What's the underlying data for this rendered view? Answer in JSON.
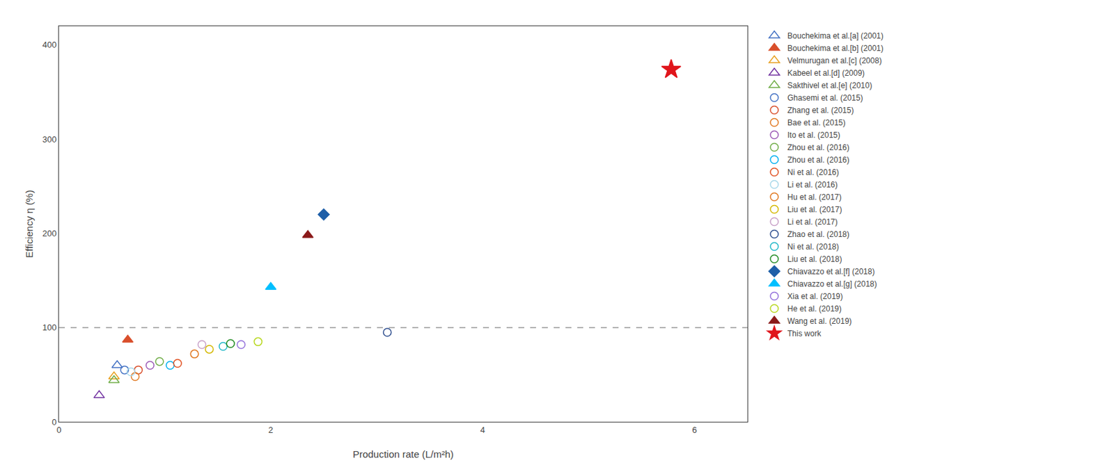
{
  "chart_data": {
    "type": "scatter",
    "x_label": "Production rate (L/m²h)",
    "y_label": "Efficiency η (%)",
    "xlim": [
      0,
      6.5
    ],
    "ylim": [
      0,
      420
    ],
    "xticks": [
      0,
      2,
      4,
      6
    ],
    "yticks": [
      0,
      100,
      200,
      300,
      400
    ],
    "grid": false,
    "legend": "right",
    "reference_lines": [
      {
        "y": 100,
        "line_style": "dashed",
        "color": "#999999"
      }
    ],
    "series": [
      {
        "name": "Bouchekima et al.[a] (2001)",
        "marker": "triangle-up-open",
        "color": "#4472C4",
        "x": [
          0.55
        ],
        "values": [
          60
        ]
      },
      {
        "name": "Bouchekima et al.[b] (2001)",
        "marker": "triangle-up",
        "color": "#D94F2B",
        "x": [
          0.65
        ],
        "values": [
          87
        ]
      },
      {
        "name": "Velmurugan et al.[c] (2008)",
        "marker": "triangle-up-open",
        "color": "#E8A020",
        "x": [
          0.52
        ],
        "values": [
          48
        ]
      },
      {
        "name": "Kabeel et al.[d] (2009)",
        "marker": "triangle-up-open",
        "color": "#7030A0",
        "x": [
          0.38
        ],
        "values": [
          28
        ]
      },
      {
        "name": "Sakthivel et al.[e] (2010)",
        "marker": "triangle-up-open",
        "color": "#70AD47",
        "x": [
          0.52
        ],
        "values": [
          44
        ]
      },
      {
        "name": "Ghasemi et al. (2015)",
        "marker": "circle-open",
        "color": "#4472C4",
        "x": [
          0.62
        ],
        "values": [
          55
        ]
      },
      {
        "name": "Zhang et al. (2015)",
        "marker": "circle-open",
        "color": "#D94F2B",
        "x": [
          0.75
        ],
        "values": [
          55
        ]
      },
      {
        "name": "Bae et al. (2015)",
        "marker": "circle-open",
        "color": "#E07820",
        "x": [
          0.72
        ],
        "values": [
          48
        ]
      },
      {
        "name": "Ito et al. (2015)",
        "marker": "circle-open",
        "color": "#9B59B6",
        "x": [
          0.86
        ],
        "values": [
          60
        ]
      },
      {
        "name": "Zhou et al. (2016)",
        "marker": "circle-open",
        "color": "#70AD47",
        "x": [
          0.95
        ],
        "values": [
          64
        ]
      },
      {
        "name": "Zhou et al. (2016)",
        "marker": "circle-open",
        "color": "#00B0F0",
        "x": [
          1.05
        ],
        "values": [
          60
        ]
      },
      {
        "name": "Ni et al. (2016)",
        "marker": "circle-open",
        "color": "#E05020",
        "x": [
          1.12
        ],
        "values": [
          62
        ]
      },
      {
        "name": "Li et al. (2016)",
        "marker": "circle-open",
        "color": "#A8D8EA",
        "x": [
          0.68
        ],
        "values": [
          53
        ]
      },
      {
        "name": "Hu et al. (2017)",
        "marker": "circle-open",
        "color": "#E07820",
        "x": [
          1.28
        ],
        "values": [
          72
        ]
      },
      {
        "name": "Liu et al. (2017)",
        "marker": "circle-open",
        "color": "#D4B800",
        "x": [
          1.42
        ],
        "values": [
          77
        ]
      },
      {
        "name": "Li et al. (2017)",
        "marker": "circle-open",
        "color": "#C8A0C8",
        "x": [
          1.35
        ],
        "values": [
          82
        ]
      },
      {
        "name": "Zhao et al. (2018)",
        "marker": "circle-open",
        "color": "#2F4F8F",
        "x": [
          3.1
        ],
        "values": [
          95
        ]
      },
      {
        "name": "Ni et al. (2018)",
        "marker": "circle-open",
        "color": "#20B8C8",
        "x": [
          1.55
        ],
        "values": [
          80
        ]
      },
      {
        "name": "Liu et al. (2018)",
        "marker": "circle-open",
        "color": "#228B22",
        "x": [
          1.62
        ],
        "values": [
          83
        ]
      },
      {
        "name": "Chiavazzo et al.[f] (2018)",
        "marker": "diamond",
        "color": "#1E5FA8",
        "x": [
          2.5
        ],
        "values": [
          220
        ]
      },
      {
        "name": "Chiavazzo et al.[g] (2018)",
        "marker": "triangle-up",
        "color": "#00BFFF",
        "x": [
          2.0
        ],
        "values": [
          143
        ]
      },
      {
        "name": "Xia et al. (2019)",
        "marker": "circle-open",
        "color": "#9370DB",
        "x": [
          1.72
        ],
        "values": [
          82
        ]
      },
      {
        "name": "He et al. (2019)",
        "marker": "circle-open",
        "color": "#B8D820",
        "x": [
          1.88
        ],
        "values": [
          85
        ]
      },
      {
        "name": "Wang et al. (2019)",
        "marker": "triangle-up",
        "color": "#8B1A1A",
        "x": [
          2.35
        ],
        "values": [
          198
        ]
      },
      {
        "name": "This work",
        "marker": "star",
        "color": "#E0161C",
        "x": [
          5.78
        ],
        "values": [
          374
        ]
      }
    ]
  }
}
